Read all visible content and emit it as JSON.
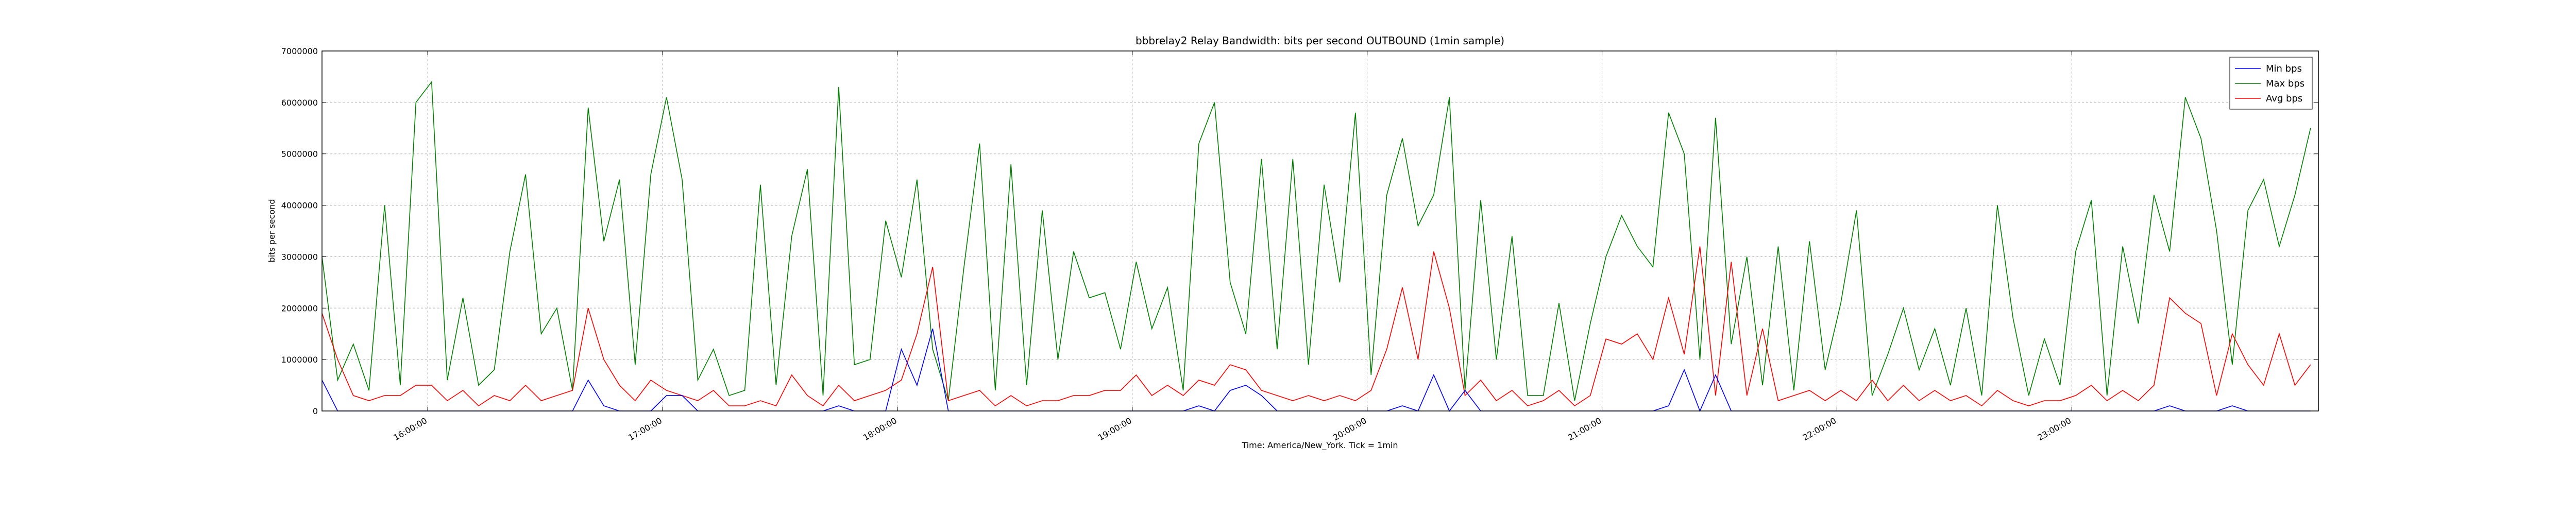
{
  "chart_data": {
    "type": "line",
    "title": "bbbrelay2 Relay Bandwidth: bits per second OUTBOUND (1min sample)",
    "x_label": "Time: America/New_York. Tick = 1min",
    "y_label": "bits per second",
    "grid": true,
    "legend": "upper right",
    "xlim": [
      "15:33:00",
      "00:03:00"
    ],
    "xticks": [
      "16:00:00",
      "17:00:00",
      "18:00:00",
      "19:00:00",
      "20:00:00",
      "21:00:00",
      "22:00:00",
      "23:00:00"
    ],
    "ylim": [
      0,
      7000000
    ],
    "yticks": [
      0,
      1000000,
      2000000,
      3000000,
      4000000,
      5000000,
      6000000,
      7000000
    ],
    "x": [
      "15:33:00",
      "15:37:00",
      "15:41:00",
      "15:45:00",
      "15:49:00",
      "15:53:00",
      "15:57:00",
      "16:01:00",
      "16:05:00",
      "16:09:00",
      "16:13:00",
      "16:17:00",
      "16:21:00",
      "16:25:00",
      "16:29:00",
      "16:33:00",
      "16:37:00",
      "16:41:00",
      "16:45:00",
      "16:49:00",
      "16:53:00",
      "16:57:00",
      "17:01:00",
      "17:05:00",
      "17:09:00",
      "17:13:00",
      "17:17:00",
      "17:21:00",
      "17:25:00",
      "17:29:00",
      "17:33:00",
      "17:37:00",
      "17:41:00",
      "17:45:00",
      "17:49:00",
      "17:53:00",
      "17:57:00",
      "18:01:00",
      "18:05:00",
      "18:09:00",
      "18:13:00",
      "18:17:00",
      "18:21:00",
      "18:25:00",
      "18:29:00",
      "18:33:00",
      "18:37:00",
      "18:41:00",
      "18:45:00",
      "18:49:00",
      "18:53:00",
      "18:57:00",
      "19:01:00",
      "19:05:00",
      "19:09:00",
      "19:13:00",
      "19:17:00",
      "19:21:00",
      "19:25:00",
      "19:29:00",
      "19:33:00",
      "19:37:00",
      "19:41:00",
      "19:45:00",
      "19:49:00",
      "19:53:00",
      "19:57:00",
      "20:01:00",
      "20:05:00",
      "20:09:00",
      "20:13:00",
      "20:17:00",
      "20:21:00",
      "20:25:00",
      "20:29:00",
      "20:33:00",
      "20:37:00",
      "20:41:00",
      "20:45:00",
      "20:49:00",
      "20:53:00",
      "20:57:00",
      "21:01:00",
      "21:05:00",
      "21:09:00",
      "21:13:00",
      "21:17:00",
      "21:21:00",
      "21:25:00",
      "21:29:00",
      "21:33:00",
      "21:37:00",
      "21:41:00",
      "21:45:00",
      "21:49:00",
      "21:53:00",
      "21:57:00",
      "22:01:00",
      "22:05:00",
      "22:09:00",
      "22:13:00",
      "22:17:00",
      "22:21:00",
      "22:25:00",
      "22:29:00",
      "22:33:00",
      "22:37:00",
      "22:41:00",
      "22:45:00",
      "22:49:00",
      "22:53:00",
      "22:57:00",
      "23:01:00",
      "23:05:00",
      "23:09:00",
      "23:13:00",
      "23:17:00",
      "23:21:00",
      "23:25:00",
      "23:29:00",
      "23:33:00",
      "23:37:00",
      "23:41:00",
      "23:45:00",
      "23:49:00",
      "23:53:00",
      "23:57:00",
      "00:01:00"
    ],
    "series": [
      {
        "name": "Min bps",
        "color": "#0000ff",
        "values": [
          600000,
          0,
          0,
          0,
          0,
          0,
          0,
          0,
          0,
          0,
          0,
          0,
          0,
          0,
          0,
          0,
          0,
          600000,
          100000,
          0,
          0,
          0,
          300000,
          300000,
          0,
          0,
          0,
          0,
          0,
          0,
          0,
          0,
          0,
          100000,
          0,
          0,
          0,
          1200000,
          500000,
          1600000,
          0,
          0,
          0,
          0,
          0,
          0,
          0,
          0,
          0,
          0,
          0,
          0,
          0,
          0,
          0,
          0,
          100000,
          0,
          400000,
          500000,
          300000,
          0,
          0,
          0,
          0,
          0,
          0,
          0,
          0,
          100000,
          0,
          700000,
          0,
          400000,
          0,
          0,
          0,
          0,
          0,
          0,
          0,
          0,
          0,
          0,
          0,
          0,
          100000,
          800000,
          0,
          700000,
          0,
          0,
          0,
          0,
          0,
          0,
          0,
          0,
          0,
          0,
          0,
          0,
          0,
          0,
          0,
          0,
          0,
          0,
          0,
          0,
          0,
          0,
          0,
          0,
          0,
          0,
          0,
          0,
          100000,
          0,
          0,
          0,
          100000,
          0,
          0,
          0,
          0,
          0
        ]
      },
      {
        "name": "Max bps",
        "color": "#008000",
        "values": [
          3000000,
          600000,
          1300000,
          400000,
          4000000,
          500000,
          6000000,
          6400000,
          600000,
          2200000,
          500000,
          800000,
          3100000,
          4600000,
          1500000,
          2000000,
          400000,
          5900000,
          3300000,
          4500000,
          900000,
          4600000,
          6100000,
          4500000,
          600000,
          1200000,
          300000,
          400000,
          4400000,
          500000,
          3400000,
          4700000,
          300000,
          6300000,
          900000,
          1000000,
          3700000,
          2600000,
          4500000,
          1200000,
          200000,
          2800000,
          5200000,
          400000,
          4800000,
          500000,
          3900000,
          1000000,
          3100000,
          2200000,
          2300000,
          1200000,
          2900000,
          1600000,
          2400000,
          400000,
          5200000,
          6000000,
          2500000,
          1500000,
          4900000,
          1200000,
          4900000,
          900000,
          4400000,
          2500000,
          5800000,
          700000,
          4200000,
          5300000,
          3600000,
          4200000,
          6100000,
          400000,
          4100000,
          1000000,
          3400000,
          300000,
          300000,
          2100000,
          200000,
          1700000,
          3000000,
          3800000,
          3200000,
          2800000,
          5800000,
          5000000,
          1000000,
          5700000,
          1300000,
          3000000,
          500000,
          3200000,
          400000,
          3300000,
          800000,
          2100000,
          3900000,
          300000,
          1100000,
          2000000,
          800000,
          1600000,
          500000,
          2000000,
          300000,
          4000000,
          1800000,
          300000,
          1400000,
          500000,
          3100000,
          4100000,
          300000,
          3200000,
          1700000,
          4200000,
          3100000,
          6100000,
          5300000,
          3500000,
          900000,
          3900000,
          4500000,
          3200000,
          4200000,
          5500000
        ]
      },
      {
        "name": "Avg bps",
        "color": "#ff0000",
        "values": [
          1900000,
          1000000,
          300000,
          200000,
          300000,
          300000,
          500000,
          500000,
          200000,
          400000,
          100000,
          300000,
          200000,
          500000,
          200000,
          300000,
          400000,
          2000000,
          1000000,
          500000,
          200000,
          600000,
          400000,
          300000,
          200000,
          400000,
          100000,
          100000,
          200000,
          100000,
          700000,
          300000,
          100000,
          500000,
          200000,
          300000,
          400000,
          600000,
          1500000,
          2800000,
          200000,
          300000,
          400000,
          100000,
          300000,
          100000,
          200000,
          200000,
          300000,
          300000,
          400000,
          400000,
          700000,
          300000,
          500000,
          300000,
          600000,
          500000,
          900000,
          800000,
          400000,
          300000,
          200000,
          300000,
          200000,
          300000,
          200000,
          400000,
          1200000,
          2400000,
          1000000,
          3100000,
          2000000,
          300000,
          600000,
          200000,
          400000,
          100000,
          200000,
          400000,
          100000,
          300000,
          1400000,
          1300000,
          1500000,
          1000000,
          2200000,
          1100000,
          3200000,
          300000,
          2900000,
          300000,
          1600000,
          200000,
          300000,
          400000,
          200000,
          400000,
          200000,
          600000,
          200000,
          500000,
          200000,
          400000,
          200000,
          300000,
          100000,
          400000,
          200000,
          100000,
          200000,
          200000,
          300000,
          500000,
          200000,
          400000,
          200000,
          500000,
          2200000,
          1900000,
          1700000,
          300000,
          1500000,
          900000,
          500000,
          1500000,
          500000,
          900000
        ]
      }
    ]
  }
}
